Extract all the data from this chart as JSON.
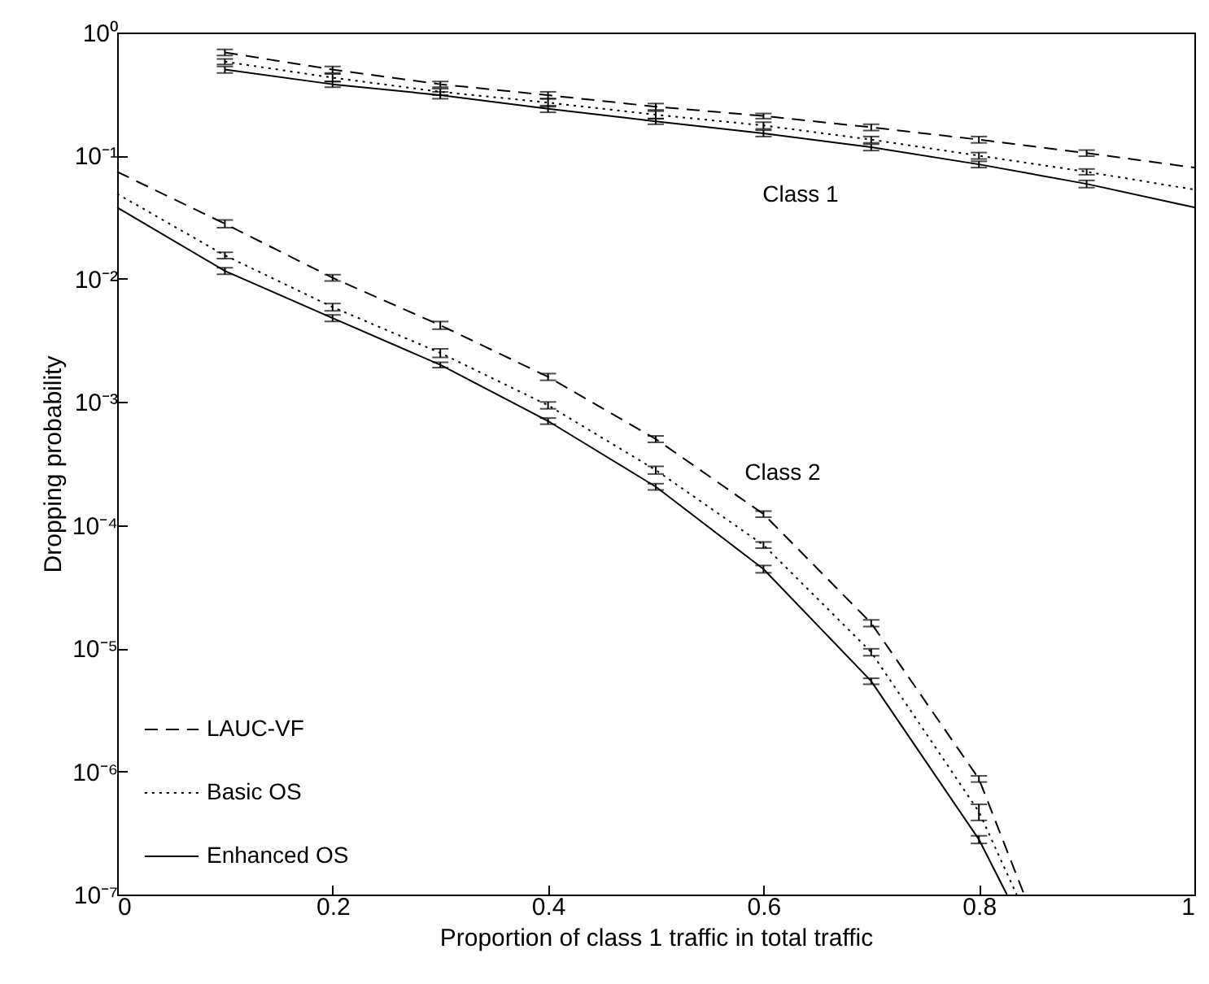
{
  "chart_data": {
    "type": "line",
    "xlabel": "Proportion of class 1 traffic in total traffic",
    "ylabel": "Dropping probability",
    "log": true,
    "grid": false,
    "legend": "bottom left",
    "marker": "none",
    "xlim": [
      0,
      1
    ],
    "xticks": [
      0,
      0.2,
      0.4,
      0.6,
      0.8,
      1
    ],
    "ylim": [
      1e-07,
      1
    ],
    "yticks": [
      {
        "value": 1e-07,
        "label": "10⁻⁷"
      },
      {
        "value": 1e-06,
        "label": "10⁻⁶"
      },
      {
        "value": 1e-05,
        "label": "10⁻⁵"
      },
      {
        "value": 0.0001,
        "label": "10⁻⁴"
      },
      {
        "value": 0.001,
        "label": "10⁻³"
      },
      {
        "value": 0.01,
        "label": "10⁻²"
      },
      {
        "value": 0.1,
        "label": "10⁻¹"
      },
      {
        "value": 1,
        "label": "10⁰"
      }
    ],
    "annotations": [
      "Class 1",
      "Class 2"
    ],
    "series": [
      {
        "name": "LAUC-VF",
        "color": "#000000",
        "line_style": "dashed",
        "x": [
          0.1,
          0.2,
          0.3,
          0.4,
          0.5,
          0.6,
          0.7,
          0.8,
          0.9,
          1.0
        ],
        "values": [
          0.69,
          0.5,
          0.38,
          0.31,
          0.25,
          0.21,
          0.17,
          0.135,
          0.105,
          0.08
        ],
        "errors": [
          [
            0.65,
            0.73
          ],
          [
            0.47,
            0.53
          ],
          [
            0.36,
            0.4
          ],
          [
            0.29,
            0.33
          ],
          [
            0.235,
            0.265
          ],
          [
            0.2,
            0.22
          ],
          [
            0.16,
            0.18
          ],
          [
            0.127,
            0.143
          ],
          [
            0.099,
            0.111
          ],
          null
        ]
      },
      {
        "name": "Basic OS",
        "color": "#000000",
        "line_style": "dotted",
        "x": [
          0.1,
          0.2,
          0.3,
          0.4,
          0.5,
          0.6,
          0.7,
          0.8,
          0.9,
          1.0
        ],
        "values": [
          0.58,
          0.43,
          0.33,
          0.27,
          0.215,
          0.176,
          0.135,
          0.1,
          0.074,
          0.053
        ],
        "errors": [
          [
            0.55,
            0.61
          ],
          [
            0.4,
            0.46
          ],
          [
            0.31,
            0.35
          ],
          [
            0.25,
            0.29
          ],
          [
            0.2,
            0.23
          ],
          [
            0.165,
            0.187
          ],
          [
            0.127,
            0.143
          ],
          [
            0.094,
            0.106
          ],
          [
            0.07,
            0.078
          ],
          null
        ]
      },
      {
        "name": "Enhanced OS",
        "color": "#000000",
        "line_style": "solid",
        "x": [
          0.1,
          0.2,
          0.3,
          0.4,
          0.5,
          0.6,
          0.7,
          0.8,
          0.9,
          1.0
        ],
        "values": [
          0.5,
          0.38,
          0.31,
          0.24,
          0.19,
          0.152,
          0.117,
          0.085,
          0.059,
          0.038
        ],
        "errors": [
          [
            0.47,
            0.53
          ],
          [
            0.36,
            0.4
          ],
          [
            0.29,
            0.33
          ],
          [
            0.225,
            0.255
          ],
          [
            0.18,
            0.2
          ],
          [
            0.143,
            0.161
          ],
          [
            0.11,
            0.124
          ],
          [
            0.08,
            0.09
          ],
          [
            0.055,
            0.063
          ],
          null
        ]
      },
      {
        "color": "#000000",
        "line_style": "dashed",
        "x": [
          0,
          0.1,
          0.2,
          0.3,
          0.4,
          0.5,
          0.6,
          0.7,
          0.8,
          0.842
        ],
        "values": [
          0.074,
          0.028,
          0.0102,
          0.0042,
          0.0016,
          0.0005,
          0.000123,
          1.6e-05,
          8.7e-07,
          1e-07
        ],
        "errors": [
          null,
          [
            0.026,
            0.03
          ],
          [
            0.0096,
            0.0108
          ],
          [
            0.0039,
            0.0045
          ],
          [
            0.0015,
            0.0017
          ],
          [
            0.00047,
            0.00053
          ],
          [
            0.000116,
            0.00013
          ],
          [
            1.5e-05,
            1.7e-05
          ],
          [
            8.2e-07,
            9.2e-07
          ],
          null
        ]
      },
      {
        "color": "#000000",
        "line_style": "dotted",
        "x": [
          0,
          0.1,
          0.2,
          0.3,
          0.4,
          0.5,
          0.6,
          0.7,
          0.8,
          0.835
        ],
        "values": [
          0.049,
          0.0155,
          0.0059,
          0.0025,
          0.00094,
          0.00028,
          6.9e-05,
          9.3e-06,
          4.7e-07,
          1e-07
        ],
        "errors": [
          null,
          [
            0.0146,
            0.0164
          ],
          [
            0.0055,
            0.0063
          ],
          [
            0.0023,
            0.0027
          ],
          [
            0.00088,
            0.001
          ],
          [
            0.00026,
            0.0003
          ],
          [
            6.5e-05,
            7.3e-05
          ],
          [
            8.7e-06,
            9.9e-06
          ],
          [
            4e-07,
            5.4e-07
          ],
          null
        ]
      },
      {
        "color": "#000000",
        "line_style": "solid",
        "x": [
          0,
          0.1,
          0.2,
          0.3,
          0.4,
          0.5,
          0.6,
          0.7,
          0.8,
          0.826
        ],
        "values": [
          0.038,
          0.0116,
          0.0048,
          0.002,
          0.0007,
          0.000205,
          4.4e-05,
          5.4e-06,
          2.8e-07,
          1e-07
        ],
        "errors": [
          null,
          [
            0.0109,
            0.0123
          ],
          [
            0.0045,
            0.0051
          ],
          [
            0.0019,
            0.0021
          ],
          [
            0.00066,
            0.00074
          ],
          [
            0.000193,
            0.000217
          ],
          [
            4.1e-05,
            4.7e-05
          ],
          [
            5.1e-06,
            5.7e-06
          ],
          [
            2.6e-07,
            3e-07
          ],
          null
        ]
      }
    ]
  }
}
